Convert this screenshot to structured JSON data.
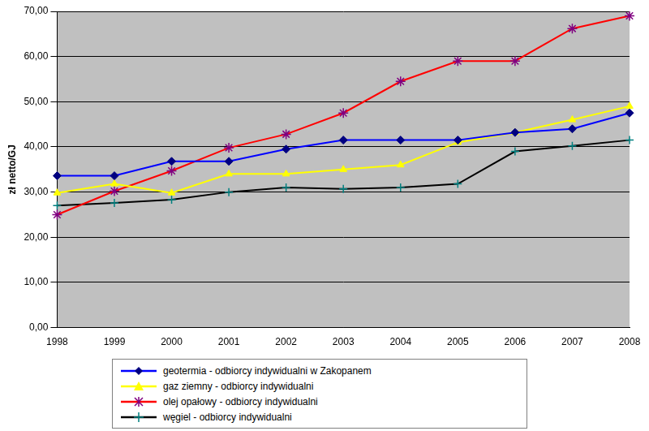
{
  "chart_data": {
    "type": "line",
    "y_label": "zł netto/GJ",
    "categories": [
      "1998",
      "1999",
      "2000",
      "2001",
      "2002",
      "2003",
      "2004",
      "2005",
      "2006",
      "2007",
      "2008"
    ],
    "series": [
      {
        "name": "geotermia - odbiorcy indywidualni w Zakopanem",
        "color": "#0000ff",
        "marker": "diamond",
        "values": [
          33.6,
          33.6,
          36.8,
          36.8,
          39.5,
          41.5,
          41.5,
          41.5,
          43.2,
          44.0,
          47.5
        ]
      },
      {
        "name": "gaz ziemny - odbiorcy indywidualni",
        "color": "#ffff00",
        "marker": "triangle",
        "values": [
          29.8,
          31.8,
          29.8,
          34.0,
          34.0,
          35.0,
          36.0,
          41.0,
          43.2,
          46.0,
          49.0
        ]
      },
      {
        "name": "olej opałowy - odbiorcy indywidualni",
        "color": "#ff0000",
        "marker": "star",
        "values": [
          25.0,
          30.2,
          34.7,
          39.8,
          42.8,
          47.5,
          54.5,
          59.0,
          59.0,
          66.2,
          69.0
        ]
      },
      {
        "name": "węgiel - odbiorcy indywidualni",
        "color": "#000000",
        "marker": "cross",
        "values": [
          27.0,
          27.6,
          28.3,
          30.0,
          31.0,
          30.7,
          31.0,
          31.8,
          39.0,
          40.2,
          41.5
        ]
      }
    ],
    "ylim": [
      0,
      70
    ],
    "yticks": [
      {
        "value": 0,
        "label": "0,00"
      },
      {
        "value": 10,
        "label": "10,00"
      },
      {
        "value": 20,
        "label": "20,00"
      },
      {
        "value": 30,
        "label": "30,00"
      },
      {
        "value": 40,
        "label": "40,00"
      },
      {
        "value": 50,
        "label": "50,00"
      },
      {
        "value": 60,
        "label": "60,00"
      },
      {
        "value": 70,
        "label": "70,00"
      }
    ],
    "grid": true,
    "legend": "bottom"
  }
}
